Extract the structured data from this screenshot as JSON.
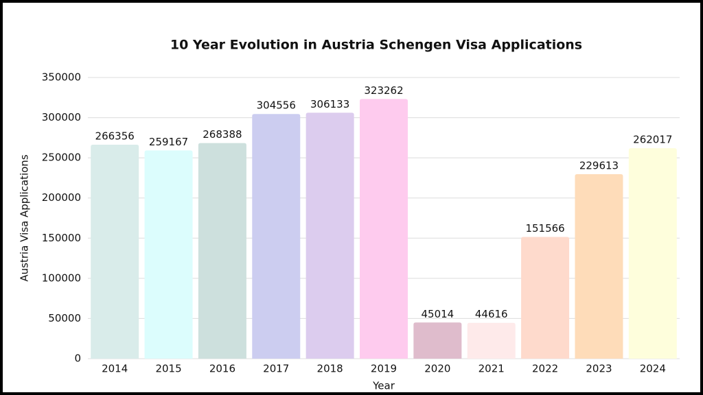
{
  "chart_data": {
    "type": "bar",
    "title": "10 Year Evolution in Austria Schengen Visa Applications",
    "x_label": "Year",
    "y_label": "Austria Visa Applications",
    "categories": [
      "2014",
      "2015",
      "2016",
      "2017",
      "2018",
      "2019",
      "2020",
      "2021",
      "2022",
      "2023",
      "2024"
    ],
    "values": [
      266356,
      259167,
      268388,
      304556,
      306133,
      323262,
      45014,
      44616,
      151566,
      229613,
      262017
    ],
    "colors": [
      "#d9ecea",
      "#dcfdfd",
      "#cde0dd",
      "#cccdf0",
      "#dcccee",
      "#fecbee",
      "#dfbccc",
      "#feeaea",
      "#fedacc",
      "#fedcb9",
      "#fefedc"
    ],
    "ylim": [
      0,
      350000
    ],
    "yticks": [
      0,
      50000,
      100000,
      150000,
      200000,
      250000,
      300000,
      350000
    ],
    "grid": true
  }
}
